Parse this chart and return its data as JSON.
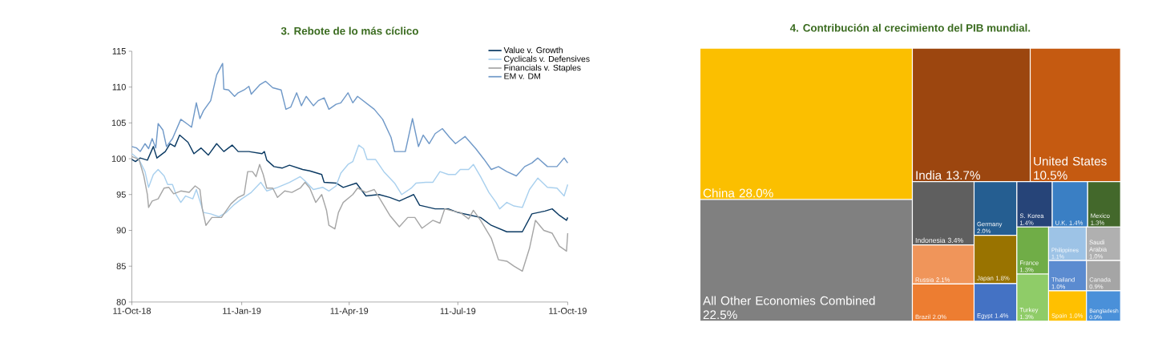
{
  "chart_data": [
    {
      "type": "line",
      "title": "3. Rebote de lo más cíclico",
      "xlim": [
        "2018-10-11",
        "2019-10-11"
      ],
      "xticks": [
        {
          "value": "2018-10-11",
          "label": "11-Oct-18"
        },
        {
          "value": "2019-01-11",
          "label": "11-Jan-19"
        },
        {
          "value": "2019-04-11",
          "label": "11-Apr-19"
        },
        {
          "value": "2019-07-11",
          "label": "11-Jul-19"
        },
        {
          "value": "2019-10-11",
          "label": "11-Oct-19"
        }
      ],
      "ylim": [
        80,
        115
      ],
      "yticks": [
        80,
        85,
        90,
        95,
        100,
        105,
        110,
        115
      ],
      "legend": "top right",
      "series": [
        {
          "name": "Value v. Growth",
          "color": "#0b3a63",
          "x": [
            "2018-10-11",
            "2018-10-14",
            "2018-10-18",
            "2018-10-24",
            "2018-10-29",
            "2018-11-01",
            "2018-11-08",
            "2018-11-12",
            "2018-11-16",
            "2018-11-20",
            "2018-11-27",
            "2018-12-02",
            "2018-12-08",
            "2018-12-14",
            "2018-12-21",
            "2018-12-27",
            "2019-01-03",
            "2019-01-08",
            "2019-01-17",
            "2019-01-28",
            "2019-01-30",
            "2019-02-01",
            "2019-02-07",
            "2019-02-14",
            "2019-02-20",
            "2019-03-03",
            "2019-03-09",
            "2019-03-19",
            "2019-03-21",
            "2019-03-31",
            "2019-04-06",
            "2019-04-17",
            "2019-04-25",
            "2019-05-06",
            "2019-05-15",
            "2019-05-23",
            "2019-06-04",
            "2019-06-09",
            "2019-06-22",
            "2019-07-03",
            "2019-07-11",
            "2019-07-22",
            "2019-07-30",
            "2019-08-08",
            "2019-08-21",
            "2019-09-03",
            "2019-09-11",
            "2019-09-22",
            "2019-09-28",
            "2019-10-04",
            "2019-10-10",
            "2019-10-11"
          ],
          "values": [
            99.9,
            99.6,
            100.1,
            99.8,
            101.7,
            100.1,
            101.0,
            102.1,
            101.7,
            103.3,
            102.3,
            100.7,
            101.5,
            100.5,
            102.1,
            101.0,
            101.9,
            101.0,
            101.0,
            100.7,
            101.0,
            99.8,
            98.9,
            98.7,
            99.1,
            98.5,
            98.3,
            97.8,
            96.7,
            96.6,
            96.0,
            96.6,
            94.8,
            95.0,
            94.6,
            94.1,
            95.0,
            93.5,
            93.0,
            93.0,
            92.5,
            92.1,
            91.8,
            90.7,
            89.8,
            89.8,
            92.3,
            92.7,
            93.0,
            92.1,
            91.4,
            91.8
          ]
        },
        {
          "name": "Cyclicals v. Defensives",
          "color": "#a9d0ee",
          "x": [
            "2018-10-11",
            "2018-10-17",
            "2018-10-22",
            "2018-10-25",
            "2018-10-29",
            "2018-11-02",
            "2018-11-07",
            "2018-11-10",
            "2018-11-14",
            "2018-11-17",
            "2018-11-21",
            "2018-11-25",
            "2018-12-01",
            "2018-12-04",
            "2018-12-10",
            "2018-12-16",
            "2018-12-23",
            "2018-12-29",
            "2019-01-04",
            "2019-01-11",
            "2019-01-19",
            "2019-01-27",
            "2019-02-01",
            "2019-02-10",
            "2019-02-20",
            "2019-03-01",
            "2019-03-05",
            "2019-03-12",
            "2019-03-20",
            "2019-03-25",
            "2019-03-31",
            "2019-04-04",
            "2019-04-10",
            "2019-04-14",
            "2019-04-19",
            "2019-04-23",
            "2019-04-26",
            "2019-05-03",
            "2019-05-10",
            "2019-05-19",
            "2019-05-25",
            "2019-06-02",
            "2019-06-06",
            "2019-06-14",
            "2019-06-20",
            "2019-06-26",
            "2019-07-03",
            "2019-07-09",
            "2019-07-13",
            "2019-07-20",
            "2019-07-24",
            "2019-07-30",
            "2019-08-06",
            "2019-08-12",
            "2019-08-15",
            "2019-08-21",
            "2019-08-27",
            "2019-09-03",
            "2019-09-09",
            "2019-09-16",
            "2019-09-24",
            "2019-10-02",
            "2019-10-08",
            "2019-10-11"
          ],
          "values": [
            100.7,
            99.9,
            98.2,
            96.0,
            97.8,
            98.5,
            97.6,
            96.4,
            96.4,
            95.0,
            93.9,
            94.8,
            94.4,
            95.7,
            92.5,
            92.3,
            91.9,
            92.5,
            93.5,
            94.4,
            95.3,
            96.7,
            95.5,
            96.0,
            96.7,
            97.5,
            96.9,
            95.7,
            96.0,
            95.5,
            96.2,
            98.0,
            99.2,
            99.6,
            101.9,
            101.4,
            99.9,
            99.9,
            98.2,
            96.6,
            95.0,
            95.9,
            96.6,
            96.7,
            96.7,
            98.2,
            97.8,
            97.8,
            98.5,
            98.5,
            99.2,
            97.5,
            95.3,
            93.9,
            93.0,
            93.9,
            93.4,
            93.2,
            95.7,
            97.3,
            96.0,
            95.9,
            94.8,
            96.4
          ]
        },
        {
          "name": "Financials v. Staples",
          "color": "#a6a6a6",
          "x": [
            "2018-10-11",
            "2018-10-17",
            "2018-10-21",
            "2018-10-24",
            "2018-10-25",
            "2018-10-28",
            "2018-11-02",
            "2018-11-07",
            "2018-11-11",
            "2018-11-15",
            "2018-11-21",
            "2018-11-28",
            "2018-12-03",
            "2018-12-07",
            "2018-12-09",
            "2018-12-12",
            "2018-12-17",
            "2018-12-25",
            "2019-01-02",
            "2019-01-08",
            "2019-01-13",
            "2019-01-16",
            "2019-01-20",
            "2019-01-23",
            "2019-01-26",
            "2019-01-29",
            "2019-02-01",
            "2019-02-06",
            "2019-02-10",
            "2019-02-16",
            "2019-02-22",
            "2019-03-01",
            "2019-03-05",
            "2019-03-09",
            "2019-03-14",
            "2019-03-19",
            "2019-03-23",
            "2019-03-25",
            "2019-03-30",
            "2019-04-02",
            "2019-04-06",
            "2019-04-14",
            "2019-04-18",
            "2019-04-25",
            "2019-05-02",
            "2019-05-06",
            "2019-05-15",
            "2019-05-23",
            "2019-05-30",
            "2019-06-05",
            "2019-06-11",
            "2019-06-20",
            "2019-06-26",
            "2019-06-30",
            "2019-07-07",
            "2019-07-13",
            "2019-07-20",
            "2019-07-24",
            "2019-07-30",
            "2019-08-08",
            "2019-08-14",
            "2019-08-21",
            "2019-08-27",
            "2019-09-03",
            "2019-09-09",
            "2019-09-14",
            "2019-09-21",
            "2019-09-28",
            "2019-10-04",
            "2019-10-10",
            "2019-10-11"
          ],
          "values": [
            100.3,
            99.9,
            97.6,
            95.0,
            93.2,
            94.1,
            94.4,
            95.9,
            96.0,
            95.1,
            95.5,
            95.3,
            96.2,
            95.7,
            93.0,
            90.7,
            91.8,
            91.8,
            93.7,
            94.6,
            95.0,
            98.2,
            98.2,
            97.5,
            99.2,
            97.8,
            95.9,
            95.9,
            94.6,
            95.5,
            95.3,
            95.9,
            96.7,
            95.9,
            93.9,
            95.0,
            92.8,
            90.7,
            90.2,
            92.5,
            93.9,
            95.0,
            95.9,
            95.3,
            95.7,
            94.6,
            92.1,
            90.5,
            91.8,
            91.8,
            90.3,
            91.4,
            91.0,
            93.0,
            92.7,
            92.5,
            91.6,
            92.8,
            91.4,
            88.9,
            85.9,
            85.7,
            85.0,
            84.3,
            87.5,
            91.4,
            90.0,
            89.6,
            87.8,
            87.1,
            89.6
          ]
        },
        {
          "name": "EM v. DM",
          "color": "#7099c8",
          "x": [
            "2018-10-11",
            "2018-10-15",
            "2018-10-18",
            "2018-10-22",
            "2018-10-25",
            "2018-10-28",
            "2018-10-31",
            "2018-11-02",
            "2018-11-06",
            "2018-11-09",
            "2018-11-14",
            "2018-11-21",
            "2018-11-26",
            "2018-11-30",
            "2018-12-04",
            "2018-12-07",
            "2018-12-10",
            "2018-12-16",
            "2018-12-21",
            "2018-12-26",
            "2018-12-27",
            "2018-12-31",
            "2019-01-05",
            "2019-01-08",
            "2019-01-13",
            "2019-01-17",
            "2019-01-19",
            "2019-01-26",
            "2019-01-31",
            "2019-02-06",
            "2019-02-13",
            "2019-02-17",
            "2019-02-21",
            "2019-02-26",
            "2019-03-02",
            "2019-03-06",
            "2019-03-12",
            "2019-03-16",
            "2019-03-21",
            "2019-03-25",
            "2019-03-31",
            "2019-04-04",
            "2019-04-10",
            "2019-04-14",
            "2019-04-18",
            "2019-04-25",
            "2019-05-02",
            "2019-05-09",
            "2019-05-16",
            "2019-05-19",
            "2019-05-28",
            "2019-06-03",
            "2019-06-08",
            "2019-06-12",
            "2019-06-17",
            "2019-06-22",
            "2019-06-28",
            "2019-07-04",
            "2019-07-09",
            "2019-07-17",
            "2019-07-26",
            "2019-08-02",
            "2019-08-08",
            "2019-08-14",
            "2019-08-21",
            "2019-08-29",
            "2019-09-05",
            "2019-09-11",
            "2019-09-16",
            "2019-09-24",
            "2019-10-02",
            "2019-10-08",
            "2019-10-11"
          ],
          "values": [
            101.7,
            101.5,
            101.0,
            102.1,
            101.4,
            102.8,
            101.5,
            104.9,
            104.0,
            101.7,
            102.8,
            105.5,
            104.9,
            104.4,
            107.8,
            105.6,
            106.7,
            108.1,
            111.7,
            113.3,
            109.7,
            109.6,
            108.7,
            109.2,
            109.6,
            110.1,
            109.0,
            110.3,
            110.8,
            109.9,
            109.6,
            106.9,
            107.2,
            109.2,
            107.4,
            108.7,
            107.4,
            108.1,
            108.5,
            106.9,
            107.6,
            107.8,
            109.2,
            107.8,
            108.7,
            107.8,
            106.9,
            105.5,
            103.0,
            101.0,
            101.0,
            105.6,
            101.7,
            103.3,
            102.1,
            103.5,
            104.2,
            103.0,
            102.1,
            103.1,
            101.4,
            99.9,
            98.5,
            98.9,
            98.2,
            97.6,
            98.9,
            99.4,
            100.1,
            98.9,
            98.9,
            100.1,
            99.4
          ]
        }
      ]
    },
    {
      "type": "other",
      "title": "4. Contribución al crecimiento del PIB mundial.",
      "categories": [
        "China",
        "All Other Economies Combined",
        "India",
        "United States",
        "Indonesia",
        "Russia",
        "Brazil",
        "Germany",
        "Japan",
        "Egypt",
        "S. Korea",
        "U.K.",
        "Mexico",
        "France",
        "Turkey",
        "Philippines",
        "Saudi Arabia",
        "Thailand",
        "Spain",
        "Canada",
        "Bangladesh"
      ],
      "values": [
        28.0,
        22.5,
        13.7,
        10.5,
        3.4,
        2.1,
        2.0,
        2.0,
        1.8,
        1.4,
        1.4,
        1.4,
        1.3,
        1.3,
        1.3,
        1.1,
        1.0,
        1.0,
        1.0,
        0.9,
        0.9
      ],
      "value_labels": [
        "28.0%",
        "22.5%",
        "13.7%",
        "10.5%",
        "3.4%",
        "2.1%",
        "2.0%",
        "2.0%",
        "1.8%",
        "1.4%",
        "1.4%",
        "1.4%",
        "1.3%",
        "1.3%",
        "1.3%",
        "1.1%",
        "1.0%",
        "1.0%",
        "1.0%",
        "0.9%",
        "0.9%"
      ],
      "colors": [
        "#fbbf00",
        "#808080",
        "#9c460f",
        "#c55a11",
        "#5f5f5f",
        "#f0955a",
        "#ed7d31",
        "#255e91",
        "#997300",
        "#4472c4",
        "#264478",
        "#3a7fc4",
        "#43682b",
        "#70ad47",
        "#8fcc68",
        "#9dc3e6",
        "#b0b0b0",
        "#5b8bd0",
        "#ffc000",
        "#a5a5a5",
        "#4a90d9"
      ]
    }
  ]
}
